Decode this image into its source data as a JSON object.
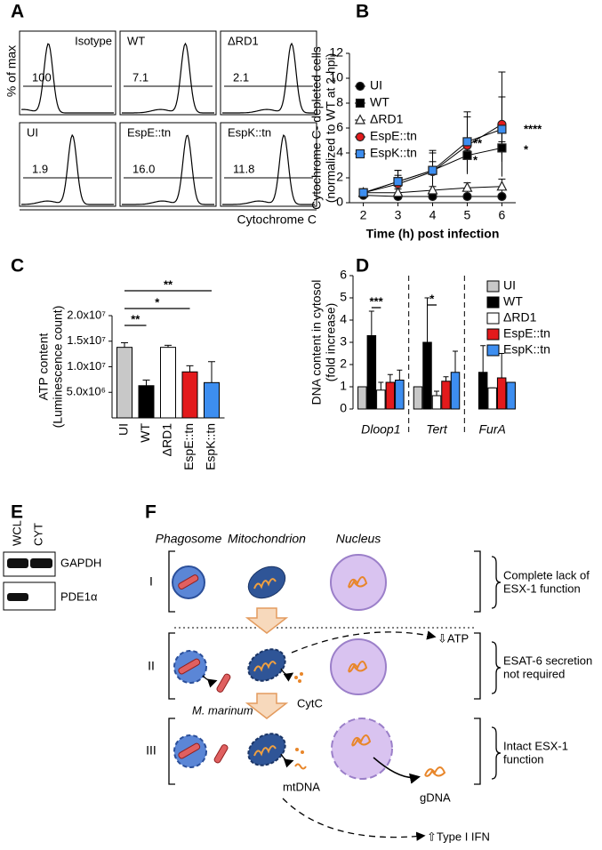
{
  "panel_a": {
    "letter": "A",
    "y_label": "% of max",
    "x_label": "Cytochrome C",
    "histograms": [
      {
        "label": "Isotype",
        "gate": "100"
      },
      {
        "label": "WT",
        "gate": "7.1"
      },
      {
        "label": "ΔRD1",
        "gate": "2.1"
      },
      {
        "label": "UI",
        "gate": "1.9"
      },
      {
        "label": "EspE::tn",
        "gate": "16.0"
      },
      {
        "label": "EspK::tn",
        "gate": "11.8"
      }
    ]
  },
  "chart_data": [
    {
      "type": "line",
      "panel": "B",
      "y_label": [
        "Cytochrome C- depleted cells",
        "(normalized to WT at 2 hpi)"
      ],
      "x_label": "Time (h) post infection",
      "x": [
        2,
        3,
        4,
        5,
        6
      ],
      "xlim": [
        1.6,
        6.4
      ],
      "xticks": [
        2,
        3,
        4,
        5,
        6
      ],
      "ylim": [
        0,
        12
      ],
      "yticks": [
        0,
        2,
        4,
        6,
        8,
        10,
        12
      ],
      "series": [
        {
          "name": "UI",
          "color": "#000000",
          "marker": "circle",
          "values": [
            0.6,
            0.5,
            0.5,
            0.5,
            0.5
          ],
          "errors": [
            0.1,
            0.1,
            0.1,
            0.1,
            0.1
          ]
        },
        {
          "name": "WT",
          "color": "#000000",
          "marker": "square",
          "values": [
            0.8,
            1.7,
            2.6,
            3.8,
            4.4
          ],
          "errors": [
            0.3,
            0.5,
            0.7,
            0.4,
            0.5
          ]
        },
        {
          "name": "ΔRD1",
          "color": "#ffffff",
          "marker": "triangle",
          "values": [
            0.8,
            0.8,
            1.0,
            1.2,
            1.3
          ],
          "errors": [
            0.2,
            0.3,
            0.3,
            0.4,
            0.6
          ]
        },
        {
          "name": "EspE::tn",
          "color": "#e31a1c",
          "marker": "circle",
          "values": [
            0.8,
            1.5,
            2.5,
            4.6,
            6.3
          ],
          "errors": [
            0.3,
            1.1,
            1.7,
            2.3,
            4.2
          ]
        },
        {
          "name": "EspK::tn",
          "color": "#3d8ef0",
          "marker": "square",
          "values": [
            0.8,
            1.7,
            2.6,
            4.9,
            5.9
          ],
          "errors": [
            0.3,
            0.9,
            1.4,
            2.4,
            2.6
          ]
        }
      ],
      "annotations": [
        "**",
        "*",
        "****",
        "*"
      ]
    },
    {
      "type": "bar",
      "panel": "C",
      "y_label": [
        "ATP content",
        "(Luminescence count)"
      ],
      "categories": [
        "UI",
        "WT",
        "ΔRD1",
        "EspE::tn",
        "EspK::tn"
      ],
      "values": [
        13800000,
        6300000,
        13800000,
        9000000,
        6900000
      ],
      "errors": [
        900000,
        1100000,
        400000,
        1200000,
        4100000
      ],
      "colors": [
        "#c8c8c8",
        "#000000",
        "#ffffff",
        "#e31a1c",
        "#3d8ef0"
      ],
      "ylim": [
        0,
        20000000
      ],
      "yticks": [
        {
          "value": 5000000,
          "label": "5.0x10⁶"
        },
        {
          "value": 10000000,
          "label": "1.0x10⁷"
        },
        {
          "value": 15000000,
          "label": "1.5x10⁷"
        },
        {
          "value": 20000000,
          "label": "2.0x10⁷"
        }
      ],
      "annotations": [
        "**",
        "*",
        "**"
      ]
    },
    {
      "type": "grouped_bar",
      "panel": "D",
      "y_label": [
        "DNA content in cytosol",
        "(fold increase)"
      ],
      "categories": [
        "Dloop1",
        "Tert",
        "FurA"
      ],
      "ylim": [
        0,
        6
      ],
      "yticks": [
        0,
        1,
        2,
        3,
        4,
        5,
        6
      ],
      "series": [
        {
          "name": "UI",
          "color": "#c8c8c8",
          "values": [
            1,
            1,
            null
          ],
          "errors": [
            0,
            0,
            null
          ]
        },
        {
          "name": "WT",
          "color": "#000000",
          "values": [
            3.3,
            3.0,
            1.65
          ],
          "errors": [
            1.1,
            2.0,
            1.2
          ]
        },
        {
          "name": "ΔRD1",
          "color": "#ffffff",
          "values": [
            0.85,
            0.6,
            0.95
          ],
          "errors": [
            0.35,
            0.2,
            0
          ]
        },
        {
          "name": "EspE::tn",
          "color": "#e31a1c",
          "values": [
            1.2,
            1.25,
            1.4
          ],
          "errors": [
            0.35,
            0.2,
            1.1
          ]
        },
        {
          "name": "EspK::tn",
          "color": "#3d8ef0",
          "values": [
            1.3,
            1.65,
            1.2
          ],
          "errors": [
            0.45,
            0.95,
            0
          ]
        }
      ],
      "annotations": [
        "***",
        "*"
      ]
    }
  ],
  "panel_e": {
    "letter": "E",
    "lanes": [
      "WCL",
      "CYT"
    ],
    "bands": [
      "GAPDH",
      "PDE1α"
    ]
  },
  "panel_f": {
    "letter": "F",
    "columns": [
      "Phagosome",
      "Mitochondrion",
      "Nucleus"
    ],
    "rows": [
      {
        "numeral": "I",
        "note": [
          "Complete lack of",
          "ESX-1 function"
        ]
      },
      {
        "numeral": "II",
        "note": [
          "ESAT-6 secretion",
          "not required"
        ]
      },
      {
        "numeral": "III",
        "note": [
          "Intact ESX-1",
          "function"
        ]
      }
    ],
    "labels": {
      "atp": "⇩ATP",
      "bacterium": "M. marinum",
      "cytc": "CytC",
      "mtdna": "mtDNA",
      "gdna": "gDNA",
      "ifn": "⇧Type I IFN"
    }
  }
}
